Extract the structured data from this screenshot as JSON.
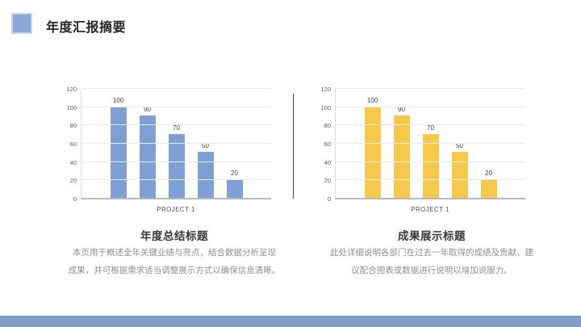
{
  "slide": {
    "title": "年度汇报摘要",
    "accent_color": "#8CA4D6",
    "footer_color": "#7E9DC9"
  },
  "sections": [
    {
      "heading": "年度总结标题",
      "body": [
        "本页用于概述全年关键业绩与亮点，结合数据分析呈现",
        "成果，并可根据需求适当调整展示方式以确保信息清晰。"
      ]
    },
    {
      "heading": "成果展示标题",
      "body": [
        "此处详细说明各部门在过去一年取得的成绩及贡献，建",
        "议配合图表或数据进行说明以增加说服力。"
      ]
    }
  ],
  "chart_data": [
    {
      "type": "bar",
      "title": "",
      "xlabel": "PROJECT 1",
      "ylabel": "",
      "values": [
        100,
        90,
        70,
        50,
        20
      ],
      "data_labels": [
        "100",
        "90",
        "70",
        "50",
        "20"
      ],
      "bar_color": "#7FA0D4",
      "ylim": [
        0,
        120
      ],
      "yticks": [
        0,
        20,
        40,
        60,
        80,
        100,
        120
      ],
      "grid": true,
      "legend": "none"
    },
    {
      "type": "bar",
      "title": "",
      "xlabel": "PROJECT 1",
      "ylabel": "",
      "values": [
        100,
        90,
        70,
        50,
        20
      ],
      "data_labels": [
        "100",
        "90",
        "70",
        "50",
        "20"
      ],
      "bar_color": "#F5C84E",
      "ylim": [
        0,
        120
      ],
      "yticks": [
        0,
        20,
        40,
        60,
        80,
        100,
        120
      ],
      "grid": true,
      "legend": "none"
    }
  ]
}
